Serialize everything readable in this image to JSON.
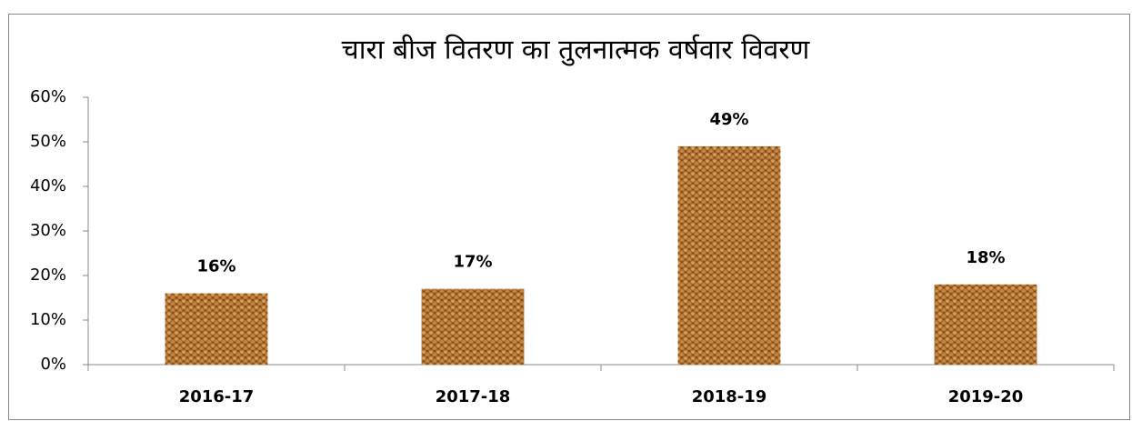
{
  "chart_data": {
    "type": "bar",
    "title": "चारा बीज वितरण का तुलनात्मक वर्षवार विवरण",
    "categories": [
      "2016-17",
      "2017-18",
      "2018-19",
      "2019-20"
    ],
    "values": [
      16,
      17,
      49,
      18
    ],
    "value_labels": [
      "16%",
      "17%",
      "49%",
      "18%"
    ],
    "color": "#a8692c",
    "ylim": [
      0,
      60
    ],
    "yticks": [
      {
        "value": 0,
        "label": "0%"
      },
      {
        "value": 10,
        "label": "10%"
      },
      {
        "value": 20,
        "label": "20%"
      },
      {
        "value": 30,
        "label": "30%"
      },
      {
        "value": 40,
        "label": "40%"
      },
      {
        "value": 50,
        "label": "50%"
      },
      {
        "value": 60,
        "label": "60%"
      }
    ],
    "grid": false
  }
}
